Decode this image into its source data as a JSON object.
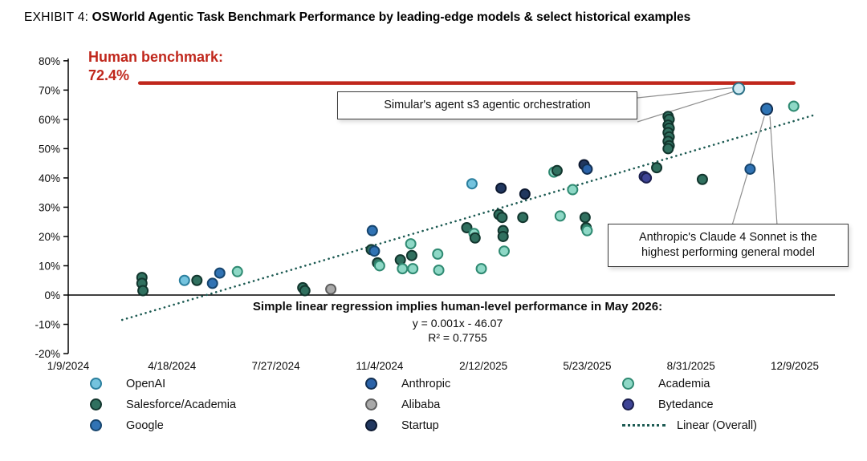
{
  "header": {
    "exhibit": "EXHIBIT 4:",
    "title": "OSWorld Agentic Task Benchmark Performance by leading-edge models & select historical examples"
  },
  "human_benchmark": {
    "label": "Human benchmark:",
    "value_label": "72.4%",
    "value": 72.4,
    "color": "#c0271c",
    "start_date": "2024-03-18",
    "end_date": "2025-12-08"
  },
  "annotations": {
    "simular": {
      "text": "Simular's agent s3 agentic orchestration",
      "target_date": "2025-10-16",
      "target_value": 70.5
    },
    "anthropic": {
      "text_line1": "Anthropic's Claude 4 Sonnet is the",
      "text_line2": "highest performing general model",
      "target_date": "2025-11-12",
      "target_value": 63.5
    }
  },
  "regression": {
    "heading": "Simple linear regression implies human-level performance in May 2026:",
    "equation": "y = 0.001x - 46.07",
    "r_squared": "R² = 0.7755"
  },
  "chart_data": {
    "type": "scatter",
    "x_axis": {
      "tick_labels": [
        "1/9/2024",
        "4/18/2024",
        "7/27/2024",
        "11/4/2024",
        "2/12/2025",
        "5/23/2025",
        "8/31/2025",
        "12/9/2025"
      ],
      "tick_dates": [
        "2024-01-09",
        "2024-04-18",
        "2024-07-27",
        "2024-11-04",
        "2025-02-12",
        "2025-05-23",
        "2025-08-31",
        "2025-12-09"
      ],
      "start": "2024-01-09",
      "end": "2025-12-09"
    },
    "y_axis": {
      "min": -20,
      "max": 80,
      "step": 10,
      "labels": [
        "-20%",
        "-10%",
        "0%",
        "10%",
        "20%",
        "30%",
        "40%",
        "50%",
        "60%",
        "70%",
        "80%"
      ]
    },
    "orgs": {
      "OpenAI": {
        "fill": "#74c3de",
        "stroke": "#2b7f9e"
      },
      "Salesforce/Academia": {
        "fill": "#30705f",
        "stroke": "#12362e"
      },
      "Google": {
        "fill": "#3173b4",
        "stroke": "#16456e"
      },
      "Anthropic": {
        "fill": "#2a62a8",
        "stroke": "#122f52"
      },
      "Alibaba": {
        "fill": "#a9a9a9",
        "stroke": "#5f5f5f"
      },
      "Startup": {
        "fill": "#21375f",
        "stroke": "#0c1830"
      },
      "Academia": {
        "fill": "#8ed8c6",
        "stroke": "#2f8a72"
      },
      "Bytedance": {
        "fill": "#3e4496",
        "stroke": "#1b1f4d"
      }
    },
    "trend": {
      "name": "Linear (Overall)",
      "color": "#1c5a52",
      "start": {
        "date": "2024-03-01",
        "value": -8.5
      },
      "end": {
        "date": "2025-12-28",
        "value": 61.5
      }
    },
    "points": [
      {
        "date": "2024-03-20",
        "value": 6,
        "org": "Salesforce/Academia"
      },
      {
        "date": "2024-03-20",
        "value": 4,
        "org": "Salesforce/Academia"
      },
      {
        "date": "2024-03-21",
        "value": 1.5,
        "org": "Salesforce/Academia"
      },
      {
        "date": "2024-04-30",
        "value": 5,
        "org": "OpenAI"
      },
      {
        "date": "2024-05-12",
        "value": 5,
        "org": "Salesforce/Academia"
      },
      {
        "date": "2024-05-27",
        "value": 4,
        "org": "Google"
      },
      {
        "date": "2024-06-03",
        "value": 7.5,
        "org": "Google"
      },
      {
        "date": "2024-06-20",
        "value": 8,
        "org": "Academia"
      },
      {
        "date": "2024-08-22",
        "value": 2.5,
        "org": "Salesforce/Academia"
      },
      {
        "date": "2024-08-24",
        "value": 1.5,
        "org": "Salesforce/Academia"
      },
      {
        "date": "2024-09-18",
        "value": 2,
        "org": "Alibaba"
      },
      {
        "date": "2024-10-28",
        "value": 22,
        "org": "Google"
      },
      {
        "date": "2024-10-27",
        "value": 15.5,
        "org": "Salesforce/Academia"
      },
      {
        "date": "2024-10-30",
        "value": 15,
        "org": "Google"
      },
      {
        "date": "2024-11-02",
        "value": 11,
        "org": "Salesforce/Academia"
      },
      {
        "date": "2024-11-04",
        "value": 10,
        "org": "Academia"
      },
      {
        "date": "2024-11-24",
        "value": 12,
        "org": "Salesforce/Academia"
      },
      {
        "date": "2024-11-26",
        "value": 9,
        "org": "Academia"
      },
      {
        "date": "2024-12-04",
        "value": 17.5,
        "org": "Academia"
      },
      {
        "date": "2024-12-05",
        "value": 13.5,
        "org": "Salesforce/Academia"
      },
      {
        "date": "2024-12-06",
        "value": 9,
        "org": "Academia"
      },
      {
        "date": "2024-12-30",
        "value": 14,
        "org": "Academia"
      },
      {
        "date": "2024-12-31",
        "value": 8.5,
        "org": "Academia"
      },
      {
        "date": "2025-01-27",
        "value": 23,
        "org": "Salesforce/Academia"
      },
      {
        "date": "2025-02-01",
        "value": 38,
        "org": "OpenAI"
      },
      {
        "date": "2025-02-03",
        "value": 21,
        "org": "Academia"
      },
      {
        "date": "2025-02-04",
        "value": 19.5,
        "org": "Salesforce/Academia"
      },
      {
        "date": "2025-02-10",
        "value": 9,
        "org": "Academia"
      },
      {
        "date": "2025-02-27",
        "value": 27.5,
        "org": "Salesforce/Academia"
      },
      {
        "date": "2025-03-01",
        "value": 36.5,
        "org": "Startup"
      },
      {
        "date": "2025-03-02",
        "value": 26.5,
        "org": "Salesforce/Academia"
      },
      {
        "date": "2025-03-03",
        "value": 22,
        "org": "Salesforce/Academia"
      },
      {
        "date": "2025-03-03",
        "value": 20,
        "org": "Salesforce/Academia"
      },
      {
        "date": "2025-03-04",
        "value": 15,
        "org": "Academia"
      },
      {
        "date": "2025-03-22",
        "value": 26.5,
        "org": "Salesforce/Academia"
      },
      {
        "date": "2025-03-24",
        "value": 34.5,
        "org": "Startup"
      },
      {
        "date": "2025-04-21",
        "value": 42,
        "org": "Academia"
      },
      {
        "date": "2025-04-24",
        "value": 42.5,
        "org": "Salesforce/Academia"
      },
      {
        "date": "2025-04-27",
        "value": 27,
        "org": "Academia"
      },
      {
        "date": "2025-05-09",
        "value": 36,
        "org": "Academia"
      },
      {
        "date": "2025-05-20",
        "value": 44.5,
        "org": "Startup"
      },
      {
        "date": "2025-05-23",
        "value": 43,
        "org": "Anthropic"
      },
      {
        "date": "2025-05-21",
        "value": 26.5,
        "org": "Salesforce/Academia"
      },
      {
        "date": "2025-05-22",
        "value": 23,
        "org": "Salesforce/Academia"
      },
      {
        "date": "2025-05-23",
        "value": 22,
        "org": "Academia"
      },
      {
        "date": "2025-07-17",
        "value": 40.5,
        "org": "Bytedance"
      },
      {
        "date": "2025-07-19",
        "value": 40,
        "org": "Bytedance"
      },
      {
        "date": "2025-07-29",
        "value": 43.5,
        "org": "Salesforce/Academia"
      },
      {
        "date": "2025-08-09",
        "value": 61,
        "org": "Salesforce/Academia"
      },
      {
        "date": "2025-08-10",
        "value": 60,
        "org": "Salesforce/Academia"
      },
      {
        "date": "2025-08-09",
        "value": 58,
        "org": "Salesforce/Academia"
      },
      {
        "date": "2025-08-10",
        "value": 57,
        "org": "Salesforce/Academia"
      },
      {
        "date": "2025-08-09",
        "value": 55.5,
        "org": "Salesforce/Academia"
      },
      {
        "date": "2025-08-10",
        "value": 54,
        "org": "Salesforce/Academia"
      },
      {
        "date": "2025-08-09",
        "value": 52.5,
        "org": "Salesforce/Academia"
      },
      {
        "date": "2025-08-10",
        "value": 51,
        "org": "Salesforce/Academia"
      },
      {
        "date": "2025-08-09",
        "value": 50,
        "org": "Salesforce/Academia"
      },
      {
        "date": "2025-09-11",
        "value": 39.5,
        "org": "Salesforce/Academia"
      },
      {
        "date": "2025-10-27",
        "value": 43,
        "org": "Google"
      },
      {
        "date": "2025-10-16",
        "value": 70.5,
        "org": "Startup",
        "highlight": true,
        "fill": "#cfeaf2",
        "stroke": "#2b6f85"
      },
      {
        "date": "2025-11-12",
        "value": 63.5,
        "org": "Anthropic",
        "highlight": true,
        "fill": "#2e74b5"
      },
      {
        "date": "2025-12-08",
        "value": 64.5,
        "org": "Academia"
      }
    ]
  },
  "legend": {
    "columns": [
      [
        {
          "label": "OpenAI",
          "org": "OpenAI"
        },
        {
          "label": "Salesforce/Academia",
          "org": "Salesforce/Academia"
        },
        {
          "label": "Google",
          "org": "Google"
        }
      ],
      [
        {
          "label": "Anthropic",
          "org": "Anthropic"
        },
        {
          "label": "Alibaba",
          "org": "Alibaba"
        },
        {
          "label": "Startup",
          "org": "Startup"
        }
      ],
      [
        {
          "label": "Academia",
          "org": "Academia"
        },
        {
          "label": "Bytedance",
          "org": "Bytedance"
        },
        {
          "label": "Linear (Overall)",
          "type": "line"
        }
      ]
    ]
  }
}
